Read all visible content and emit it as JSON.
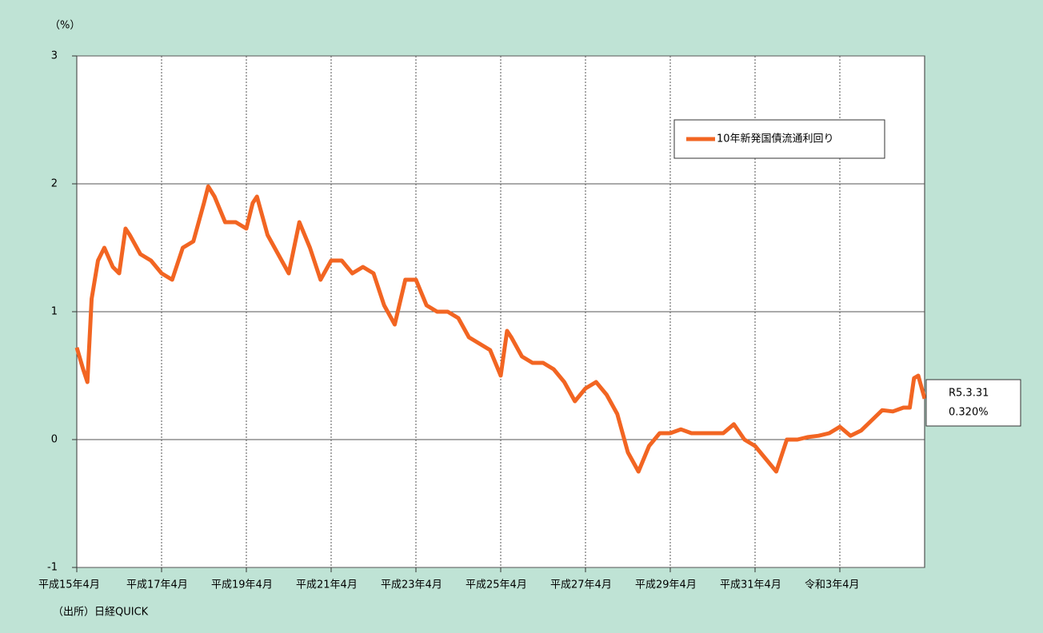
{
  "chart_data": {
    "type": "line",
    "ylabel": "（%）",
    "note": "（出所）日経QUICK",
    "annotations": [
      "R5.3.31",
      "0.320%"
    ],
    "x": [
      2003.25,
      2003.4,
      2003.5,
      2003.6,
      2003.75,
      2003.9,
      2004.1,
      2004.25,
      2004.4,
      2004.5,
      2004.75,
      2005.0,
      2005.25,
      2005.5,
      2005.75,
      2006.0,
      2006.25,
      2006.35,
      2006.5,
      2006.75,
      2007.0,
      2007.25,
      2007.4,
      2007.5,
      2007.75,
      2008.0,
      2008.25,
      2008.5,
      2008.75,
      2009.0,
      2009.25,
      2009.5,
      2009.75,
      2010.0,
      2010.25,
      2010.5,
      2010.75,
      2011.0,
      2011.25,
      2011.5,
      2011.75,
      2012.0,
      2012.25,
      2012.5,
      2012.75,
      2013.0,
      2013.25,
      2013.4,
      2013.5,
      2013.75,
      2014.0,
      2014.25,
      2014.5,
      2014.75,
      2015.0,
      2015.25,
      2015.5,
      2015.75,
      2016.0,
      2016.25,
      2016.5,
      2016.75,
      2017.0,
      2017.25,
      2017.5,
      2017.75,
      2018.0,
      2018.25,
      2018.5,
      2018.75,
      2019.0,
      2019.25,
      2019.5,
      2019.75,
      2020.0,
      2020.25,
      2020.5,
      2020.75,
      2021.0,
      2021.25,
      2021.5,
      2021.75,
      2022.0,
      2022.25,
      2022.5,
      2022.75,
      2022.9,
      2023.0,
      2023.1,
      2023.25
    ],
    "series": [
      {
        "name": "10年新発国債流通利回り",
        "color": "#f26522",
        "values": [
          0.72,
          0.55,
          0.45,
          1.1,
          1.4,
          1.5,
          1.35,
          1.3,
          1.65,
          1.6,
          1.45,
          1.4,
          1.3,
          1.25,
          1.5,
          1.55,
          1.85,
          1.98,
          1.9,
          1.7,
          1.7,
          1.65,
          1.85,
          1.9,
          1.6,
          1.45,
          1.3,
          1.7,
          1.5,
          1.25,
          1.4,
          1.4,
          1.3,
          1.35,
          1.3,
          1.05,
          0.9,
          1.25,
          1.25,
          1.05,
          1.0,
          1.0,
          0.95,
          0.8,
          0.75,
          0.7,
          0.5,
          0.85,
          0.8,
          0.65,
          0.6,
          0.6,
          0.55,
          0.45,
          0.3,
          0.4,
          0.45,
          0.35,
          0.2,
          -0.1,
          -0.25,
          -0.05,
          0.05,
          0.05,
          0.08,
          0.05,
          0.05,
          0.05,
          0.05,
          0.12,
          0.0,
          -0.05,
          -0.15,
          -0.25,
          0.0,
          0.0,
          0.02,
          0.03,
          0.05,
          0.1,
          0.03,
          0.07,
          0.15,
          0.23,
          0.22,
          0.25,
          0.25,
          0.48,
          0.5,
          0.32
        ]
      }
    ],
    "xlim": [
      2003.25,
      2023.25
    ],
    "xticks": [
      {
        "value": 2003.25,
        "label": "平成15年4月"
      },
      {
        "value": 2005.25,
        "label": "平成17年4月"
      },
      {
        "value": 2007.25,
        "label": "平成19年4月"
      },
      {
        "value": 2009.25,
        "label": "平成21年4月"
      },
      {
        "value": 2011.25,
        "label": "平成23年4月"
      },
      {
        "value": 2013.25,
        "label": "平成25年4月"
      },
      {
        "value": 2015.25,
        "label": "平成27年4月"
      },
      {
        "value": 2017.25,
        "label": "平成29年4月"
      },
      {
        "value": 2019.25,
        "label": "平成31年4月"
      },
      {
        "value": 2021.25,
        "label": "令和3年4月"
      }
    ],
    "ylim": [
      -1,
      3
    ],
    "yticks": [
      3,
      2,
      1,
      0,
      -1
    ],
    "grid": true
  }
}
